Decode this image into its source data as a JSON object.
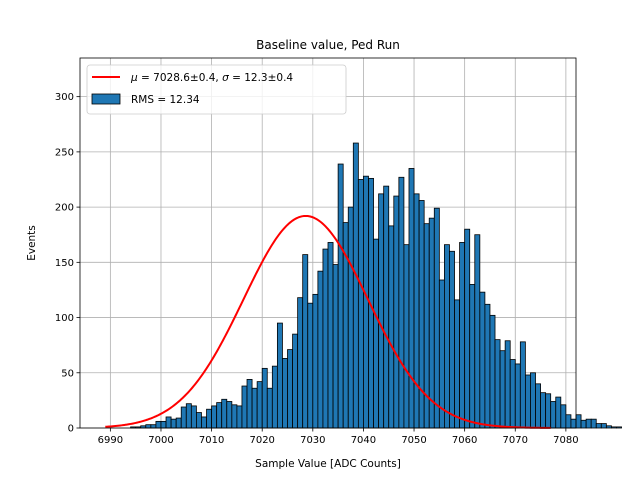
{
  "chart_data": {
    "type": "bar",
    "title": "Baseline value, Ped Run",
    "xlabel": "Sample Value [ADC Counts]",
    "ylabel": "Events",
    "xlim": [
      6984,
      7082
    ],
    "ylim": [
      0,
      335
    ],
    "xticks": [
      6990,
      7000,
      7010,
      7020,
      7030,
      7040,
      7050,
      7060,
      7070,
      7080
    ],
    "yticks": [
      0,
      50,
      100,
      150,
      200,
      250,
      300
    ],
    "grid": true,
    "legend_position": "top-left",
    "bin_width": 1,
    "bin_start": 6990,
    "histogram_color": "#1f77b4",
    "fit_color": "#ff0000",
    "series": [
      {
        "name": "RMS = 12.34",
        "kind": "histogram",
        "bin_edges_start": 6990,
        "values": [
          0,
          0,
          0,
          0,
          1,
          1,
          2,
          3,
          3,
          6,
          6,
          10,
          8,
          9,
          19,
          22,
          20,
          14,
          10,
          17,
          20,
          23,
          26,
          24,
          21,
          20,
          38,
          44,
          36,
          42,
          54,
          36,
          56,
          95,
          63,
          71,
          85,
          118,
          157,
          113,
          121,
          142,
          162,
          168,
          148,
          239,
          186,
          200,
          258,
          225,
          228,
          226,
          171,
          212,
          219,
          183,
          210,
          227,
          166,
          235,
          212,
          206,
          185,
          190,
          199,
          134,
          166,
          160,
          116,
          168,
          180,
          130,
          175,
          123,
          112,
          102,
          80,
          70,
          79,
          62,
          58,
          78,
          48,
          50,
          40,
          32,
          31,
          24,
          28,
          21,
          12,
          8,
          12,
          7,
          8,
          8,
          4,
          4,
          2,
          1,
          1,
          0,
          0,
          0,
          0,
          0,
          0
        ]
      },
      {
        "name": "μ = 7028.6±0.4, σ = 12.3±0.4",
        "kind": "gaussian-fit",
        "mu": 7028.6,
        "sigma": 12.3,
        "amplitude": 192,
        "x_range": [
          6989,
          7077
        ]
      }
    ]
  },
  "legend": {
    "fit_label_mu_symbol": "μ",
    "fit_label_mu_value": " = 7028.6±0.4, ",
    "fit_label_sigma_symbol": "σ",
    "fit_label_sigma_value": " = 12.3±0.4",
    "hist_label": "RMS = 12.34"
  }
}
